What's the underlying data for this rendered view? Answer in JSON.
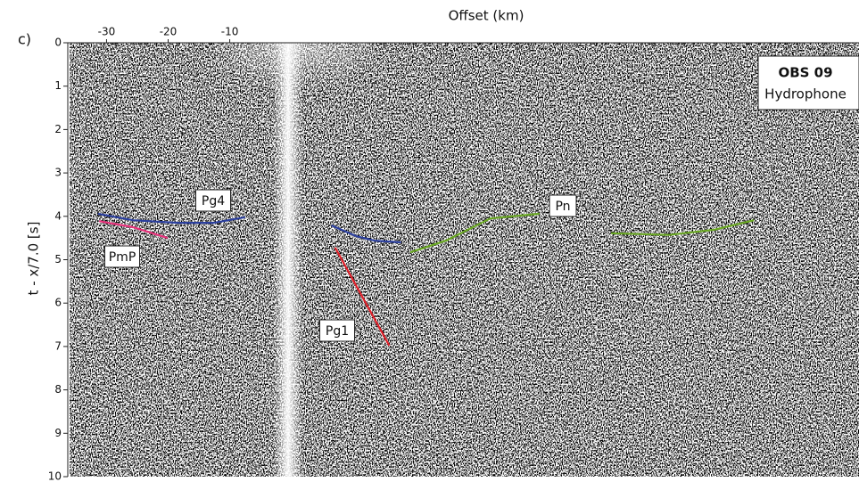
{
  "chart_data": {
    "type": "line",
    "panel_label": "c)",
    "x_label": "Offset (km)",
    "y_label": "t - x/7.0 [s]",
    "annotation": {
      "station": "OBS 09",
      "component": "Hydrophone"
    },
    "xlim": [
      -36,
      92
    ],
    "xticks": [
      -30,
      -20,
      -10
    ],
    "ylim": [
      0,
      10
    ],
    "yticks": [
      0,
      1,
      2,
      3,
      4,
      5,
      6,
      7,
      8,
      9,
      10
    ],
    "series": [
      {
        "name": "Pg4",
        "color": "#2b3f9e",
        "x": [
          -31.4,
          -25.7,
          -18.4,
          -12.6,
          -7.5,
          0,
          6.5,
          10.6,
          13.5,
          17.8
        ],
        "values": [
          3.94,
          4.09,
          4.15,
          4.15,
          4.02,
          null,
          4.21,
          4.46,
          4.56,
          4.6
        ]
      },
      {
        "name": "PmP",
        "color": "#e8327c",
        "x": [
          -31.2,
          -25.7,
          -20.1
        ],
        "values": [
          4.11,
          4.25,
          4.5
        ]
      },
      {
        "name": "Pg1",
        "color": "#e0202a",
        "x": [
          7.1,
          15.9
        ],
        "values": [
          4.72,
          6.98
        ]
      },
      {
        "name": "Pn",
        "color": "#6aa823",
        "x": [
          19.3,
          25.1,
          32.3,
          40.3,
          46,
          51.9,
          61.3,
          68.6,
          75.1
        ],
        "values": [
          4.83,
          4.56,
          4.05,
          3.94,
          null,
          4.39,
          4.43,
          4.31,
          4.09
        ]
      }
    ]
  }
}
